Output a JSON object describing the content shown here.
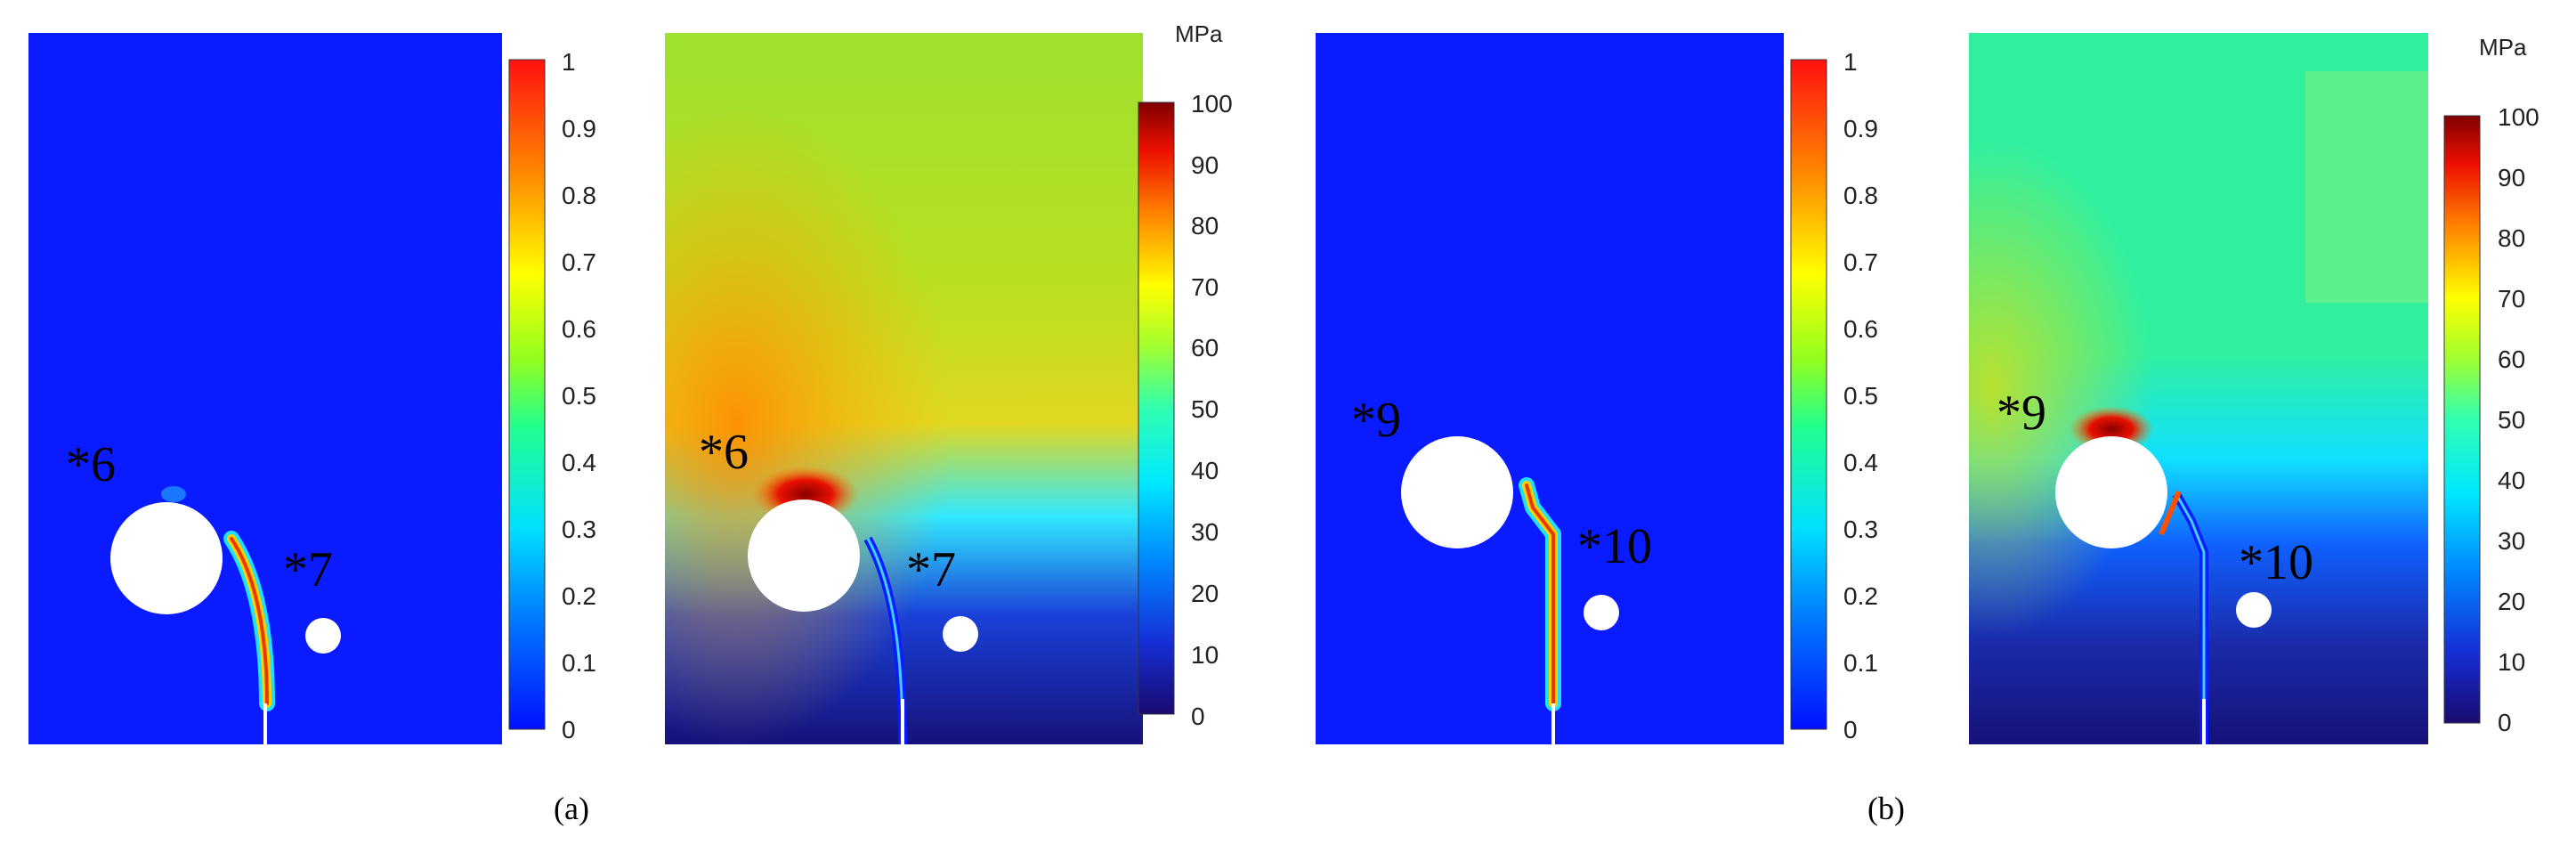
{
  "figure": {
    "panel_labels": [
      "(a)",
      "(b)"
    ],
    "damage_colorbar": {
      "ticks": [
        "1",
        "0.9",
        "0.8",
        "0.7",
        "0.6",
        "0.5",
        "0.4",
        "0.3",
        "0.2",
        "0.1",
        "0"
      ]
    },
    "stress_colorbar": {
      "unit": "MPa",
      "ticks": [
        "100",
        "90",
        "80",
        "70",
        "60",
        "50",
        "40",
        "30",
        "20",
        "10",
        "0"
      ]
    },
    "plots": [
      {
        "id": "a-damage",
        "markers": [
          "*6",
          "*7"
        ]
      },
      {
        "id": "a-stress",
        "markers": [
          "*6",
          "*7"
        ]
      },
      {
        "id": "b-damage",
        "markers": [
          "*9",
          "*10"
        ]
      },
      {
        "id": "b-stress",
        "markers": [
          "*9",
          "*10"
        ]
      }
    ],
    "colors": {
      "field_background": "#0a1cff",
      "crack_core": "#e83a00",
      "hole_fill": "#ffffff"
    }
  }
}
